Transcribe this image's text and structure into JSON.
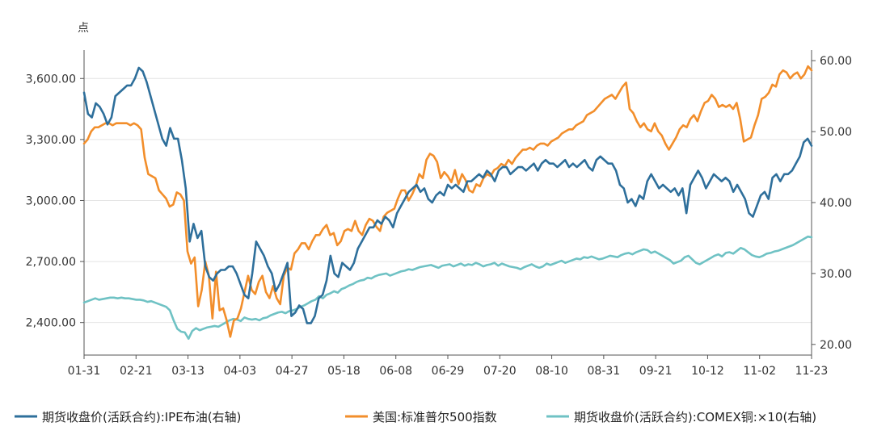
{
  "chart_data": {
    "type": "line",
    "left_unit": "点",
    "y_left": {
      "ticks": [
        "2,400.00",
        "2,700.00",
        "3,000.00",
        "3,300.00",
        "3,600.00"
      ],
      "min": 2240,
      "max": 3740
    },
    "y_right": {
      "ticks": [
        "20.00",
        "30.00",
        "40.00",
        "50.00",
        "60.00"
      ],
      "min": 18.5,
      "max": 61.5
    },
    "x_ticks": [
      "01-31",
      "02-21",
      "03-13",
      "04-03",
      "04-27",
      "05-18",
      "06-08",
      "06-29",
      "07-20",
      "08-10",
      "08-31",
      "09-21",
      "10-12",
      "11-02",
      "11-23"
    ],
    "grid": "horizontal",
    "legend_placement": "bottom",
    "series": [
      {
        "name": "期货收盘价(活跃合约):IPE布油(右轴)",
        "axis": "right",
        "color": "#2e6f9b",
        "values": [
          55.5,
          52.5,
          52.0,
          54.0,
          53.5,
          52.5,
          51.0,
          52.0,
          55.0,
          55.5,
          56.0,
          56.5,
          56.5,
          57.5,
          59.0,
          58.5,
          57.0,
          55.0,
          53.0,
          51.0,
          49.0,
          48.0,
          50.5,
          49.0,
          49.0,
          46.0,
          42.0,
          34.5,
          37.0,
          35.0,
          36.0,
          31.0,
          29.5,
          29.0,
          30.0,
          30.5,
          30.5,
          31.0,
          31.0,
          30.0,
          28.5,
          27.0,
          26.5,
          30.0,
          34.5,
          33.5,
          32.5,
          31.0,
          30.0,
          27.5,
          28.5,
          30.0,
          31.5,
          24.0,
          24.5,
          25.5,
          25.0,
          23.0,
          23.0,
          24.0,
          26.5,
          27.0,
          29.0,
          32.5,
          30.0,
          29.5,
          31.5,
          31.0,
          30.5,
          31.5,
          33.5,
          34.5,
          35.5,
          36.5,
          36.5,
          37.5,
          37.0,
          38.0,
          37.5,
          36.5,
          38.5,
          39.5,
          40.5,
          41.5,
          42.0,
          42.5,
          41.5,
          42.0,
          40.5,
          40.0,
          41.0,
          41.5,
          41.0,
          42.5,
          42.0,
          42.5,
          42.0,
          41.5,
          43.0,
          43.0,
          43.5,
          44.0,
          43.5,
          44.5,
          44.0,
          43.0,
          44.5,
          45.0,
          45.0,
          44.0,
          44.5,
          45.0,
          45.0,
          44.5,
          45.0,
          45.5,
          44.5,
          45.5,
          46.0,
          45.5,
          45.5,
          45.0,
          45.5,
          46.0,
          45.0,
          45.5,
          45.0,
          45.5,
          46.0,
          45.0,
          44.5,
          46.0,
          46.5,
          46.0,
          45.5,
          45.5,
          44.5,
          42.5,
          42.0,
          40.0,
          40.5,
          39.5,
          41.0,
          40.5,
          43.0,
          44.0,
          43.0,
          42.0,
          42.5,
          42.0,
          41.5,
          42.0,
          41.0,
          42.0,
          38.5,
          42.5,
          43.5,
          44.5,
          43.5,
          42.0,
          43.0,
          44.0,
          43.5,
          43.0,
          43.5,
          43.0,
          41.5,
          42.5,
          41.5,
          40.5,
          38.5,
          38.0,
          39.5,
          41.0,
          41.5,
          40.5,
          43.5,
          44.0,
          43.0,
          44.0,
          44.0,
          44.5,
          45.5,
          46.5,
          48.5,
          49.0,
          48.0
        ]
      },
      {
        "name": "美国:标准普尔500指数",
        "axis": "left",
        "color": "#f28e2b",
        "values": [
          3280,
          3300,
          3340,
          3360,
          3360,
          3370,
          3380,
          3380,
          3370,
          3380,
          3380,
          3380,
          3380,
          3370,
          3380,
          3370,
          3350,
          3210,
          3130,
          3120,
          3110,
          3050,
          3030,
          3010,
          2970,
          2980,
          3040,
          3030,
          3000,
          2750,
          2690,
          2720,
          2480,
          2560,
          2700,
          2630,
          2420,
          2650,
          2460,
          2470,
          2410,
          2330,
          2410,
          2420,
          2470,
          2550,
          2630,
          2560,
          2540,
          2600,
          2630,
          2550,
          2520,
          2580,
          2520,
          2490,
          2630,
          2670,
          2660,
          2740,
          2760,
          2790,
          2790,
          2760,
          2800,
          2830,
          2830,
          2860,
          2880,
          2830,
          2840,
          2780,
          2800,
          2850,
          2860,
          2850,
          2900,
          2850,
          2830,
          2880,
          2910,
          2900,
          2870,
          2850,
          2920,
          2940,
          2950,
          2960,
          3010,
          3050,
          3050,
          3000,
          3030,
          3070,
          3130,
          3110,
          3200,
          3230,
          3220,
          3190,
          3110,
          3140,
          3120,
          3090,
          3150,
          3080,
          3130,
          3100,
          3050,
          3040,
          3080,
          3070,
          3110,
          3130,
          3120,
          3150,
          3160,
          3180,
          3170,
          3200,
          3180,
          3210,
          3230,
          3250,
          3250,
          3260,
          3250,
          3270,
          3280,
          3280,
          3270,
          3290,
          3300,
          3310,
          3330,
          3340,
          3350,
          3350,
          3370,
          3380,
          3390,
          3420,
          3430,
          3440,
          3460,
          3480,
          3500,
          3510,
          3520,
          3500,
          3530,
          3560,
          3580,
          3450,
          3430,
          3390,
          3360,
          3380,
          3350,
          3340,
          3380,
          3340,
          3320,
          3280,
          3250,
          3280,
          3310,
          3350,
          3370,
          3360,
          3400,
          3420,
          3390,
          3440,
          3480,
          3490,
          3520,
          3500,
          3460,
          3470,
          3460,
          3470,
          3450,
          3480,
          3400,
          3290,
          3300,
          3310,
          3370,
          3420,
          3500,
          3510,
          3530,
          3570,
          3560,
          3620,
          3640,
          3630,
          3600,
          3620,
          3630,
          3600,
          3620,
          3660,
          3640
        ]
      },
      {
        "name": "期货收盘价(活跃合约):COMEX铜:×10(右轴)",
        "axis": "right",
        "color": "#6fc2c4",
        "values": [
          25.9,
          26.1,
          26.3,
          26.5,
          26.3,
          26.4,
          26.5,
          26.6,
          26.6,
          26.5,
          26.6,
          26.5,
          26.5,
          26.4,
          26.3,
          26.3,
          26.2,
          26.0,
          26.1,
          25.9,
          25.7,
          25.5,
          25.3,
          24.8,
          23.4,
          22.2,
          21.8,
          21.7,
          20.8,
          21.9,
          22.3,
          22.0,
          22.2,
          22.4,
          22.5,
          22.6,
          22.5,
          22.8,
          23.1,
          23.4,
          23.6,
          23.5,
          23.3,
          23.8,
          23.6,
          23.5,
          23.6,
          23.4,
          23.7,
          23.8,
          24.1,
          24.3,
          24.5,
          24.6,
          24.4,
          24.7,
          24.8,
          25.0,
          25.3,
          25.5,
          25.8,
          26.1,
          26.3,
          26.8,
          26.5,
          27.0,
          27.2,
          27.5,
          27.3,
          27.8,
          28.0,
          28.3,
          28.5,
          28.8,
          29.0,
          29.1,
          29.4,
          29.3,
          29.6,
          29.8,
          29.9,
          30.0,
          29.7,
          29.9,
          30.1,
          30.3,
          30.4,
          30.6,
          30.5,
          30.7,
          30.9,
          31.0,
          31.1,
          31.2,
          31.0,
          30.8,
          31.1,
          31.2,
          31.3,
          31.0,
          31.2,
          31.4,
          31.1,
          31.3,
          31.2,
          31.5,
          31.3,
          31.0,
          31.2,
          31.3,
          31.5,
          31.1,
          31.4,
          31.2,
          31.0,
          30.9,
          30.8,
          30.6,
          30.9,
          31.1,
          31.3,
          31.0,
          30.8,
          31.0,
          31.4,
          31.2,
          31.4,
          31.6,
          31.8,
          31.5,
          31.7,
          31.9,
          32.1,
          32.0,
          32.3,
          32.2,
          32.4,
          32.2,
          32.0,
          32.1,
          32.3,
          32.5,
          32.4,
          32.3,
          32.6,
          32.8,
          32.9,
          32.7,
          33.0,
          33.2,
          33.4,
          33.3,
          32.9,
          33.1,
          32.8,
          32.5,
          32.2,
          31.9,
          31.4,
          31.6,
          31.8,
          32.3,
          32.5,
          32.0,
          31.5,
          31.3,
          31.6,
          31.9,
          32.2,
          32.5,
          32.7,
          32.4,
          32.9,
          33.0,
          32.8,
          33.2,
          33.6,
          33.4,
          33.0,
          32.6,
          32.4,
          32.3,
          32.5,
          32.8,
          32.9,
          33.1,
          33.2,
          33.4,
          33.6,
          33.8,
          34.0,
          34.3,
          34.6,
          34.9,
          35.2,
          35.1
        ]
      }
    ]
  }
}
